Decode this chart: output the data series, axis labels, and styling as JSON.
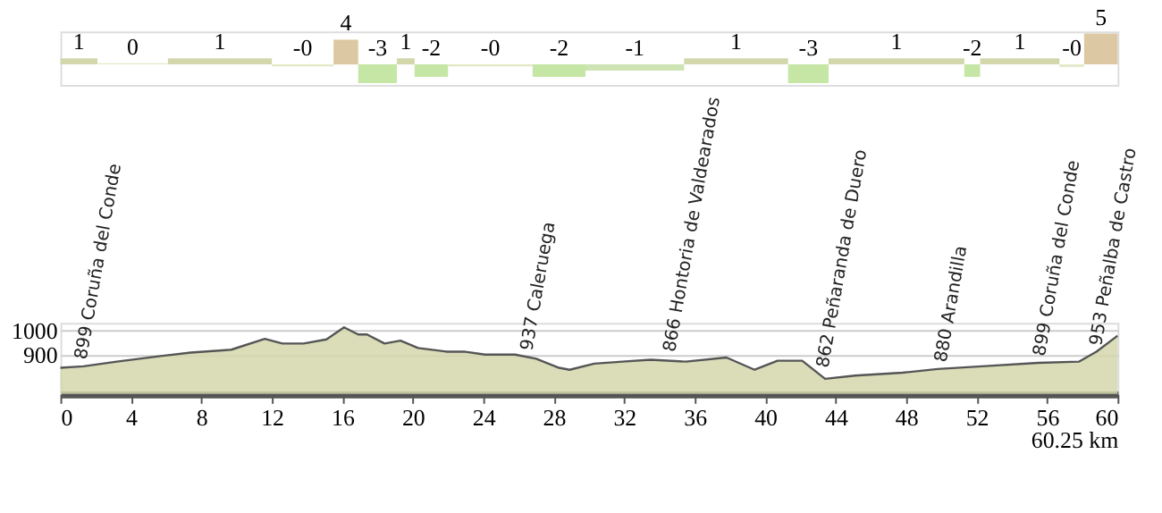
{
  "chart_data": [
    {
      "type": "bar",
      "x": [
        1.05,
        4.1,
        9.05,
        13.75,
        16.2,
        18.0,
        19.6,
        21.05,
        24.4,
        28.3,
        32.6,
        38.35,
        42.45,
        47.45,
        51.75,
        54.45,
        57.4,
        59.05
      ],
      "xlim": [
        0,
        60
      ],
      "values": [
        1,
        0.2,
        1,
        -0.3,
        4,
        -3,
        1,
        -2,
        -0.3,
        -2,
        -1,
        1,
        -3,
        1,
        -2,
        1,
        -0.4,
        5
      ],
      "value_labels": [
        "1",
        "0",
        "1",
        "-0",
        "4",
        "-3",
        "1",
        "-2",
        "-0",
        "-2",
        "-1",
        "1",
        "-3",
        "1",
        "-2",
        "1",
        "-0",
        "5"
      ],
      "colors": [
        "#d3d7ab",
        "#e3e8c6",
        "#d3d7ab",
        "#e3e8c6",
        "#dcc9a3",
        "#c6e6a6",
        "#d3d7ab",
        "#c6e6a6",
        "#e3e8c6",
        "#c6e6a6",
        "#cfe4b5",
        "#d3d7ab",
        "#c6e6a6",
        "#d3d7ab",
        "#c6e6a6",
        "#d3d7ab",
        "#e3e8c6",
        "#dcc9a3"
      ],
      "tick_labels": false
    },
    {
      "type": "area",
      "xlabel": "60.25 km",
      "xlim": [
        0,
        60
      ],
      "xticks": [
        0,
        4,
        8,
        12,
        16,
        20,
        24,
        28,
        32,
        36,
        40,
        44,
        48,
        52,
        56,
        60
      ],
      "ylim": [
        740,
        1030
      ],
      "yticks": [
        900,
        1000
      ],
      "grid": "y",
      "series": [
        {
          "color": "#d3d7ab",
          "x": [
            0,
            1.3,
            3.2,
            5.8,
            7.4,
            9.7,
            11.6,
            12.6,
            13.8,
            15.1,
            16.1,
            16.9,
            17.4,
            18.4,
            19.3,
            20.3,
            21.9,
            22.9,
            24.1,
            25.8,
            27,
            28.3,
            28.9,
            30.3,
            31.9,
            33.5,
            35.5,
            37.8,
            39.4,
            40.7,
            42.1,
            43.4,
            45.1,
            47.8,
            49.8,
            52.5,
            55.5,
            57.8,
            58.8,
            60
          ],
          "values": [
            847,
            853,
            872,
            896,
            909,
            921,
            965,
            946,
            946,
            963,
            1012,
            983,
            983,
            946,
            958,
            928,
            913,
            913,
            901,
            901,
            884,
            847,
            839,
            864,
            872,
            880,
            872,
            889,
            839,
            876,
            876,
            802,
            815,
            827,
            842,
            854,
            867,
            872,
            913,
            978
          ]
        }
      ],
      "annotations": [
        {
          "text": "899 Coruña del Conde",
          "x": 1.1,
          "y": 853
        },
        {
          "text": "937 Caleruega",
          "x": 26.4,
          "y": 890
        },
        {
          "text": "866 Hontoria de Valdearados",
          "x": 34.5,
          "y": 884
        },
        {
          "text": "862 Peñaranda de Duero",
          "x": 43.2,
          "y": 820
        },
        {
          "text": "880 Arandilla",
          "x": 49.9,
          "y": 842
        },
        {
          "text": "899 Coruña del Conde",
          "x": 55.5,
          "y": 867
        },
        {
          "text": "953 Peñalba de Castro",
          "x": 58.7,
          "y": 910
        }
      ]
    }
  ]
}
